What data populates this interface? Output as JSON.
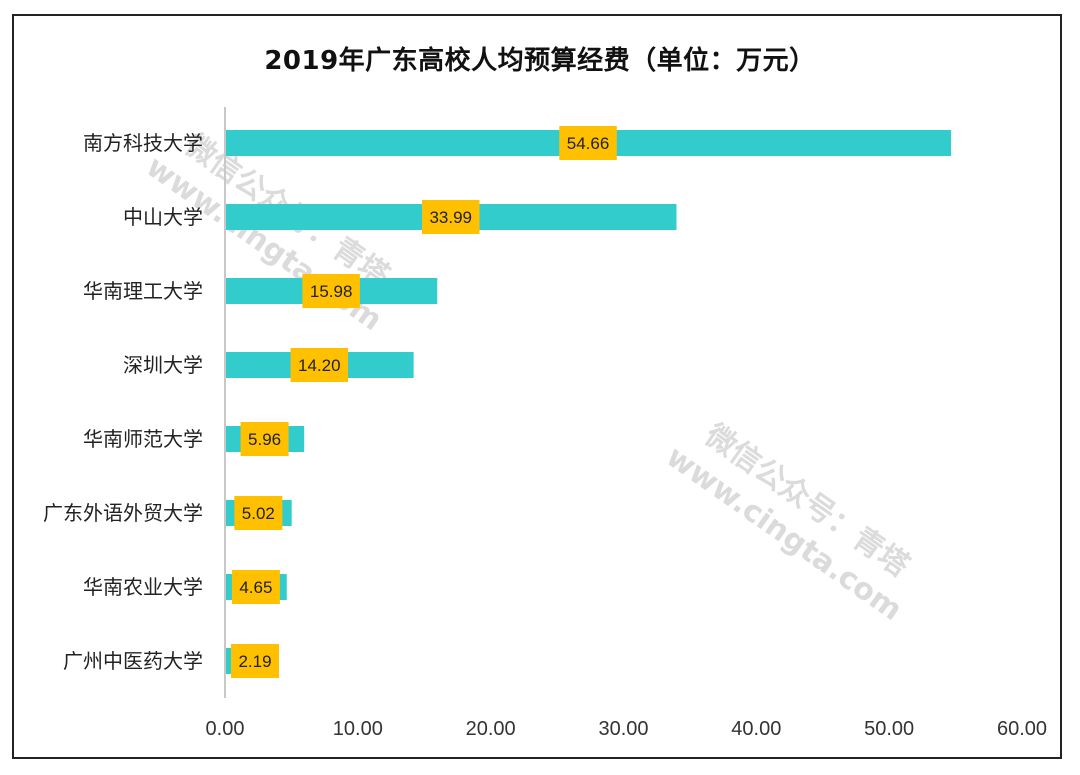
{
  "chart_data": {
    "type": "bar",
    "orientation": "horizontal",
    "title": "2019年广东高校人均预算经费（单位：万元）",
    "categories": [
      "南方科技大学",
      "中山大学",
      "华南理工大学",
      "深圳大学",
      "华南师范大学",
      "广东外语外贸大学",
      "华南农业大学",
      "广州中医药大学"
    ],
    "values": [
      54.66,
      33.99,
      15.98,
      14.2,
      5.96,
      5.02,
      4.65,
      2.19
    ],
    "value_labels": [
      "54.66",
      "33.99",
      "15.98",
      "14.20",
      "5.96",
      "5.02",
      "4.65",
      "2.19"
    ],
    "xlim": [
      0,
      60
    ],
    "xticks": [
      0,
      10,
      20,
      30,
      40,
      50,
      60
    ],
    "xtick_labels": [
      "0.00",
      "10.00",
      "20.00",
      "30.00",
      "40.00",
      "50.00",
      "60.00"
    ],
    "grid": false,
    "bar_color": "#33cccc",
    "label_bg_color": "#ffc000",
    "watermarks": [
      {
        "line1": "微信公众号：青塔",
        "line2": "www.cingta.com"
      },
      {
        "line1": "微信公众号：青塔",
        "line2": "www.cingta.com"
      }
    ]
  }
}
